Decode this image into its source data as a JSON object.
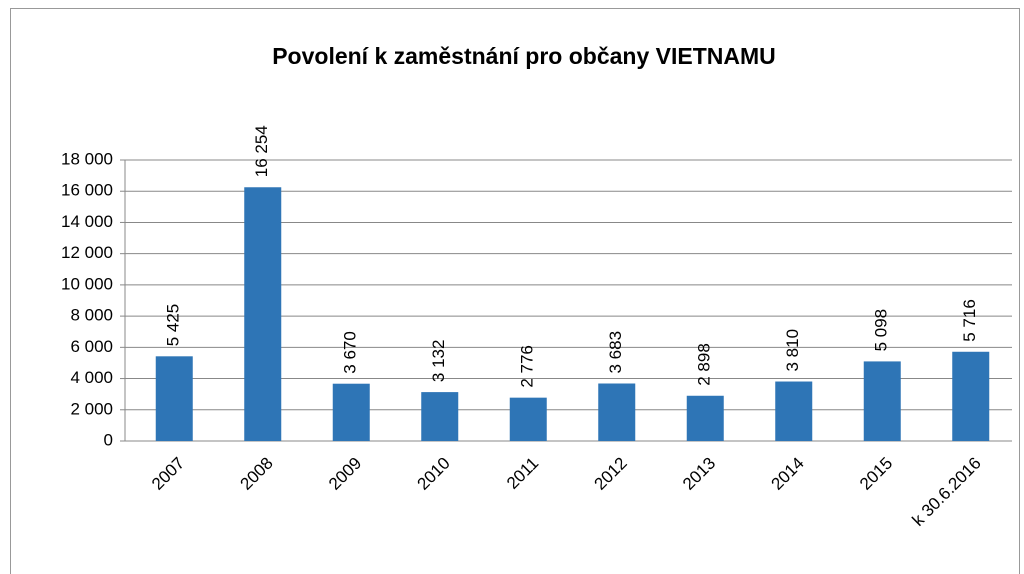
{
  "chart_data": {
    "type": "bar",
    "title": "Povolení k zaměstnání pro občany VIETNAMU",
    "categories": [
      "2007",
      "2008",
      "2009",
      "2010",
      "2011",
      "2012",
      "2013",
      "2014",
      "2015",
      "k 30.6.2016"
    ],
    "values": [
      5425,
      16254,
      3670,
      3132,
      2776,
      3683,
      2898,
      3810,
      5098,
      5716
    ],
    "value_labels": [
      "5 425",
      "16 254",
      "3 670",
      "3 132",
      "2 776",
      "3 683",
      "2 898",
      "3 810",
      "5 098",
      "5 716"
    ],
    "color": "#2e75b6",
    "ylim": [
      0,
      18000
    ],
    "yticks": [
      0,
      {
        "value": 2000,
        "label": "2 000"
      },
      {
        "value": 4000,
        "label": "4 000"
      },
      {
        "value": 6000,
        "label": "6 000"
      },
      {
        "value": 8000,
        "label": "8 000"
      },
      {
        "value": 10000,
        "label": "10 000"
      },
      {
        "value": 12000,
        "label": "12 000"
      },
      {
        "value": 14000,
        "label": "14 000"
      },
      {
        "value": 16000,
        "label": "16 000"
      },
      {
        "value": 18000,
        "label": "18 000"
      }
    ],
    "grid": true
  }
}
